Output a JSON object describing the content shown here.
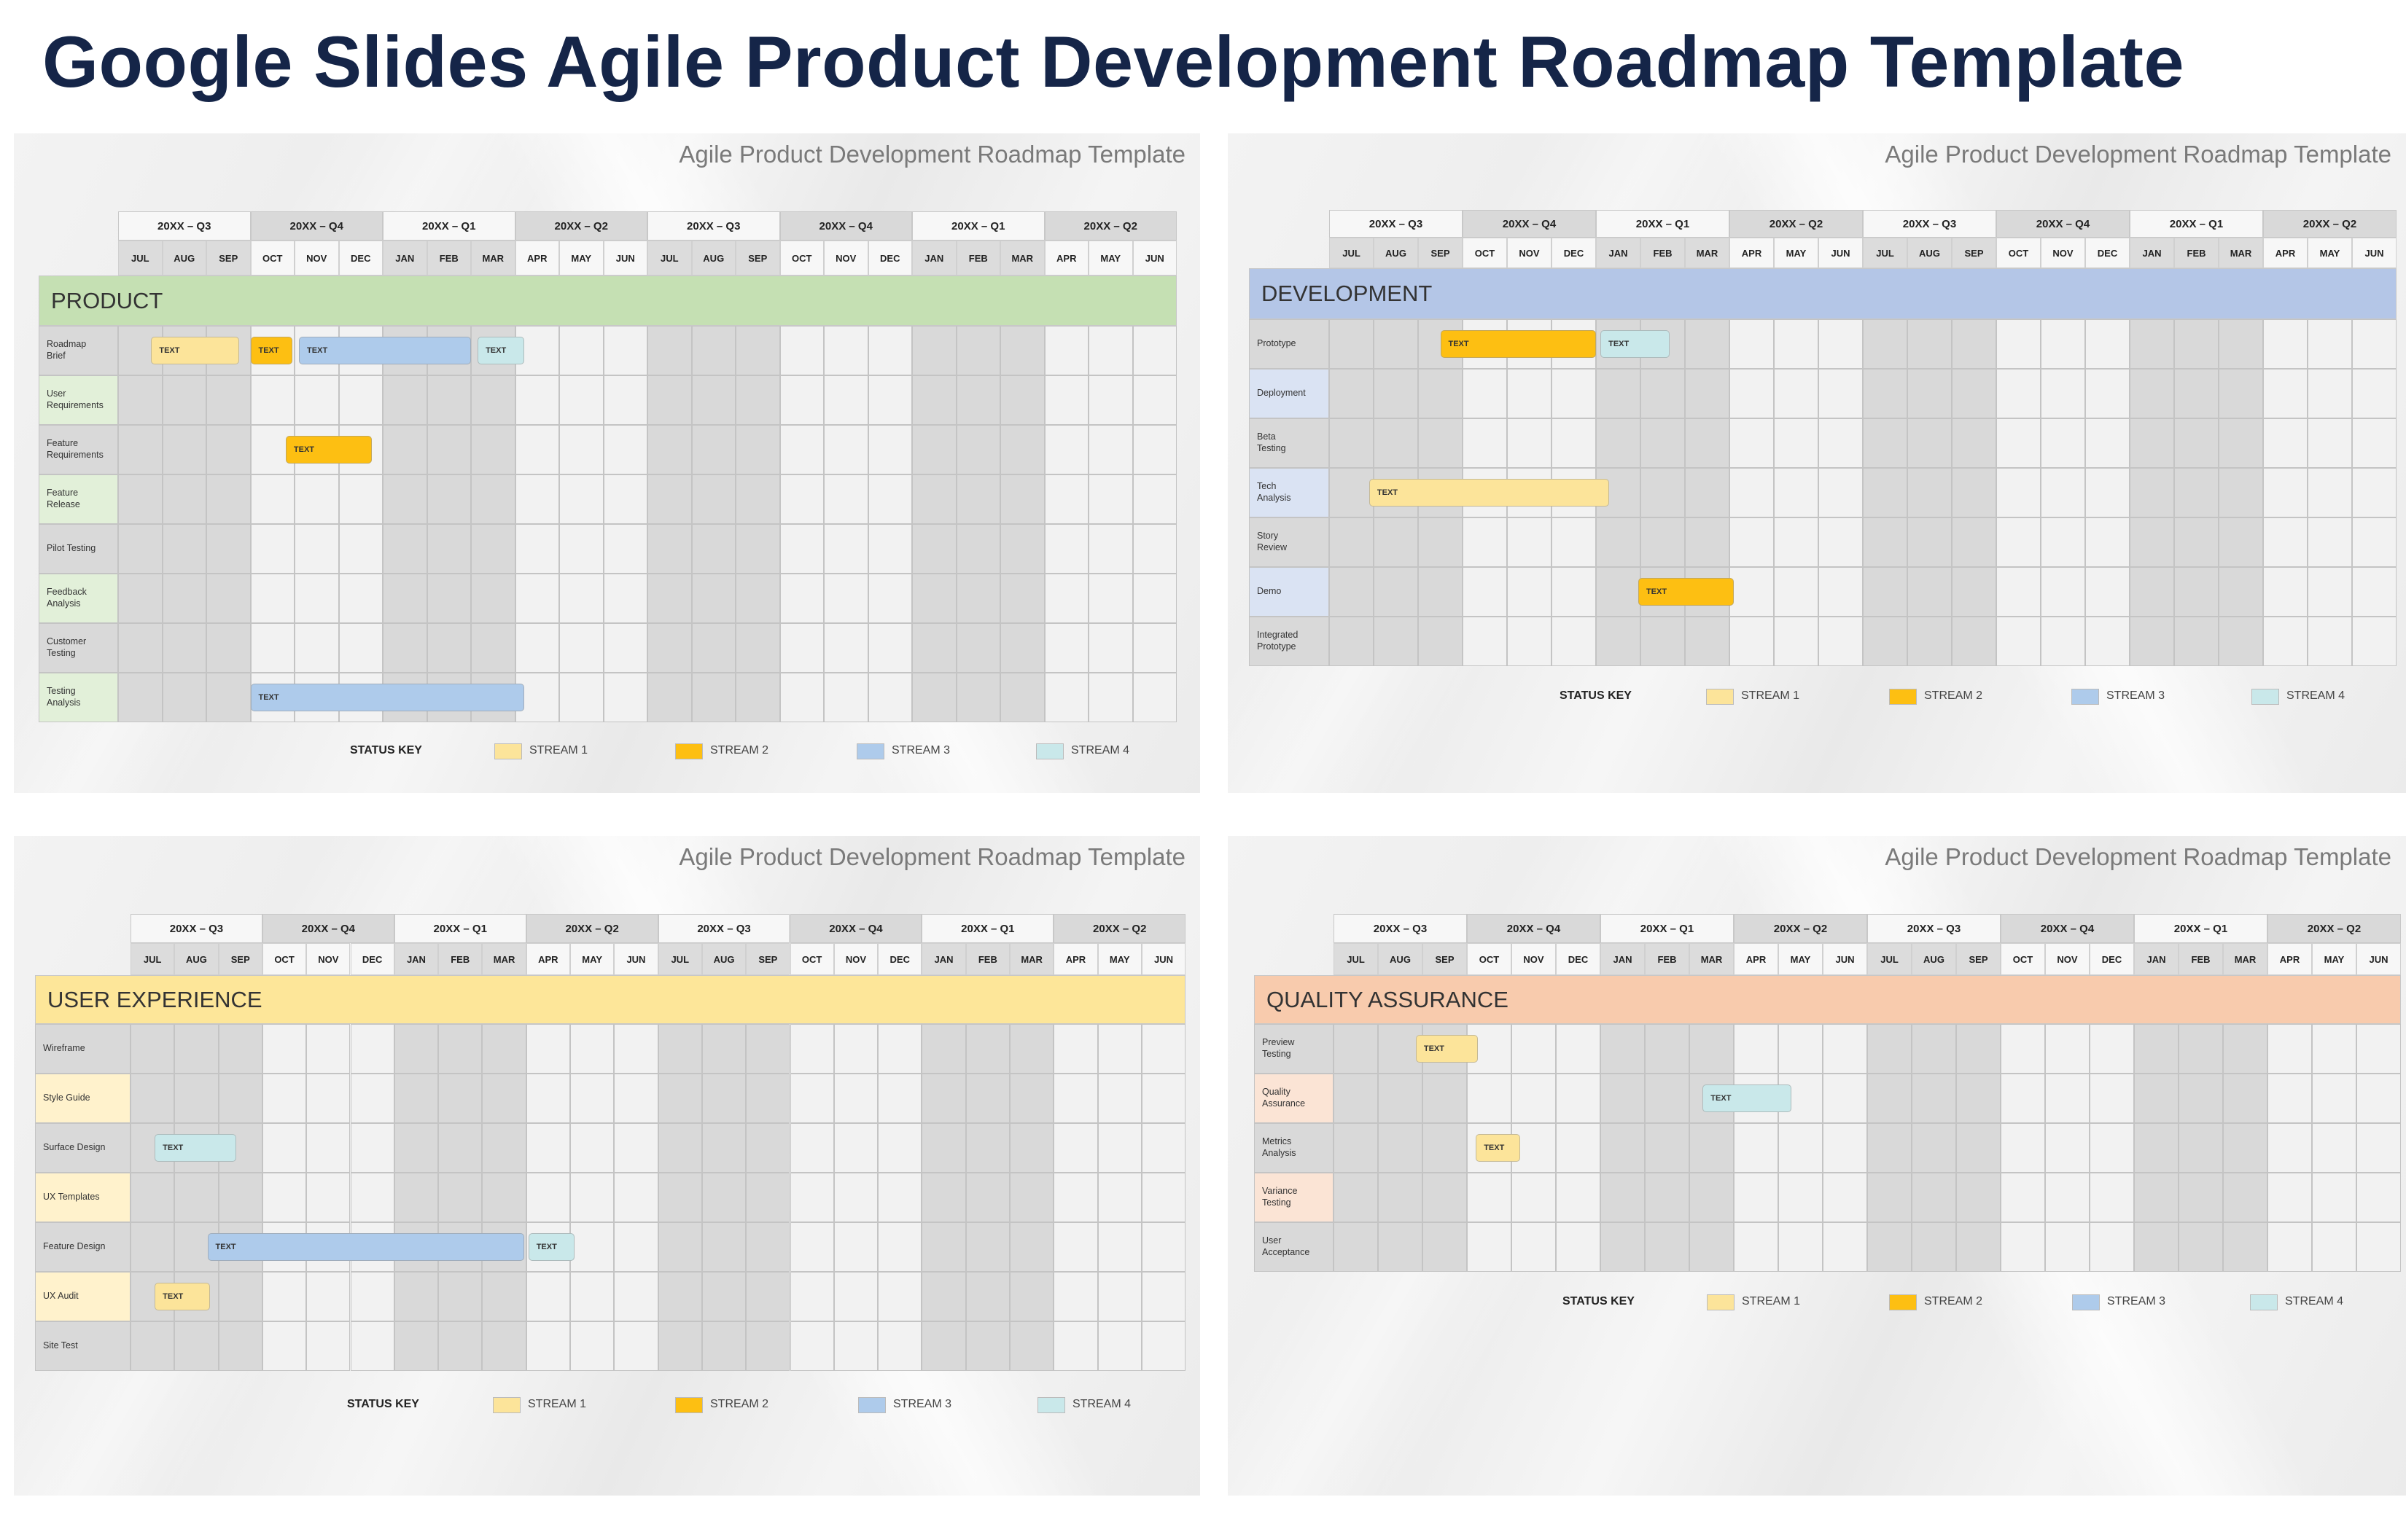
{
  "title": "Google Slides Agile Product Development Roadmap Template",
  "subtitle": "Agile Product Development Roadmap Template",
  "quarters": [
    "20XX – Q3",
    "20XX – Q4",
    "20XX – Q1",
    "20XX – Q2",
    "20XX – Q3",
    "20XX – Q4",
    "20XX – Q1",
    "20XX – Q2"
  ],
  "months": [
    "JUL",
    "AUG",
    "SEP",
    "OCT",
    "NOV",
    "DEC",
    "JAN",
    "FEB",
    "MAR",
    "APR",
    "MAY",
    "JUN",
    "JUL",
    "AUG",
    "SEP",
    "OCT",
    "NOV",
    "DEC",
    "JAN",
    "FEB",
    "MAR",
    "APR",
    "MAY",
    "JUN"
  ],
  "status_key": {
    "label": "STATUS KEY",
    "streams": [
      {
        "label": "STREAM 1",
        "color": "#fce49a"
      },
      {
        "label": "STREAM 2",
        "color": "#fdbf12"
      },
      {
        "label": "STREAM 3",
        "color": "#aecbeb"
      },
      {
        "label": "STREAM 4",
        "color": "#c9e8ea"
      }
    ]
  },
  "colors": {
    "shaded_quarter": "#d9d9d9",
    "light_quarter": "#f2f2f2",
    "title": "#152548"
  },
  "panels": [
    {
      "section": "PRODUCT",
      "band_color": "#c5e0b3",
      "accent_light": "#e2f0d9",
      "rows": [
        "Roadmap\nBrief",
        "User\nRequirements",
        "Feature\nRequirements",
        "Feature\nRelease",
        "Pilot Testing",
        "Feedback\nAnalysis",
        "Customer\nTesting",
        "Testing\nAnalysis"
      ],
      "bars": [
        {
          "row": 0,
          "start_month": 0.75,
          "end_month": 2.75,
          "stream": 1,
          "label": "TEXT"
        },
        {
          "row": 0,
          "start_month": 3.0,
          "end_month": 3.95,
          "stream": 2,
          "label": "TEXT"
        },
        {
          "row": 0,
          "start_month": 4.1,
          "end_month": 8.0,
          "stream": 3,
          "label": "TEXT"
        },
        {
          "row": 0,
          "start_month": 8.15,
          "end_month": 9.2,
          "stream": 4,
          "label": "TEXT"
        },
        {
          "row": 2,
          "start_month": 3.8,
          "end_month": 5.75,
          "stream": 2,
          "label": "TEXT"
        },
        {
          "row": 7,
          "start_month": 3.0,
          "end_month": 9.2,
          "stream": 3,
          "label": "TEXT"
        }
      ]
    },
    {
      "section": "DEVELOPMENT",
      "band_color": "#b4c6e7",
      "accent_light": "#dae3f3",
      "rows": [
        "Prototype",
        "Deployment",
        "Beta\nTesting",
        "Tech\nAnalysis",
        "Story\nReview",
        "Demo",
        "Integrated\nPrototype"
      ],
      "bars": [
        {
          "row": 0,
          "start_month": 2.5,
          "end_month": 6.0,
          "stream": 2,
          "label": "TEXT"
        },
        {
          "row": 0,
          "start_month": 6.1,
          "end_month": 7.65,
          "stream": 4,
          "label": "TEXT"
        },
        {
          "row": 3,
          "start_month": 0.9,
          "end_month": 6.3,
          "stream": 1,
          "label": "TEXT"
        },
        {
          "row": 5,
          "start_month": 6.95,
          "end_month": 9.1,
          "stream": 2,
          "label": "TEXT"
        }
      ]
    },
    {
      "section": "USER EXPERIENCE",
      "band_color": "#fde699",
      "accent_light": "#fff2cc",
      "rows": [
        "Wireframe",
        "Style Guide",
        "Surface Design",
        "UX Templates",
        "Feature Design",
        "UX Audit",
        "Site Test"
      ],
      "bars": [
        {
          "row": 2,
          "start_month": 0.55,
          "end_month": 2.4,
          "stream": 4,
          "label": "TEXT"
        },
        {
          "row": 4,
          "start_month": 1.75,
          "end_month": 8.95,
          "stream": 3,
          "label": "TEXT"
        },
        {
          "row": 4,
          "start_month": 9.05,
          "end_month": 10.1,
          "stream": 4,
          "label": "TEXT"
        },
        {
          "row": 5,
          "start_month": 0.55,
          "end_month": 1.8,
          "stream": 1,
          "label": "TEXT"
        }
      ]
    },
    {
      "section": "QUALITY ASSURANCE",
      "band_color": "#f8cbad",
      "accent_light": "#fbe4d5",
      "rows": [
        "Preview\nTesting",
        "Quality\nAssurance",
        "Metrics\nAnalysis",
        "Variance\nTesting",
        "User\nAcceptance"
      ],
      "bars": [
        {
          "row": 0,
          "start_month": 1.85,
          "end_month": 3.25,
          "stream": 1,
          "label": "TEXT"
        },
        {
          "row": 1,
          "start_month": 8.3,
          "end_month": 10.3,
          "stream": 4,
          "label": "TEXT"
        },
        {
          "row": 2,
          "start_month": 3.2,
          "end_month": 4.2,
          "stream": 1,
          "label": "TEXT"
        }
      ]
    }
  ]
}
